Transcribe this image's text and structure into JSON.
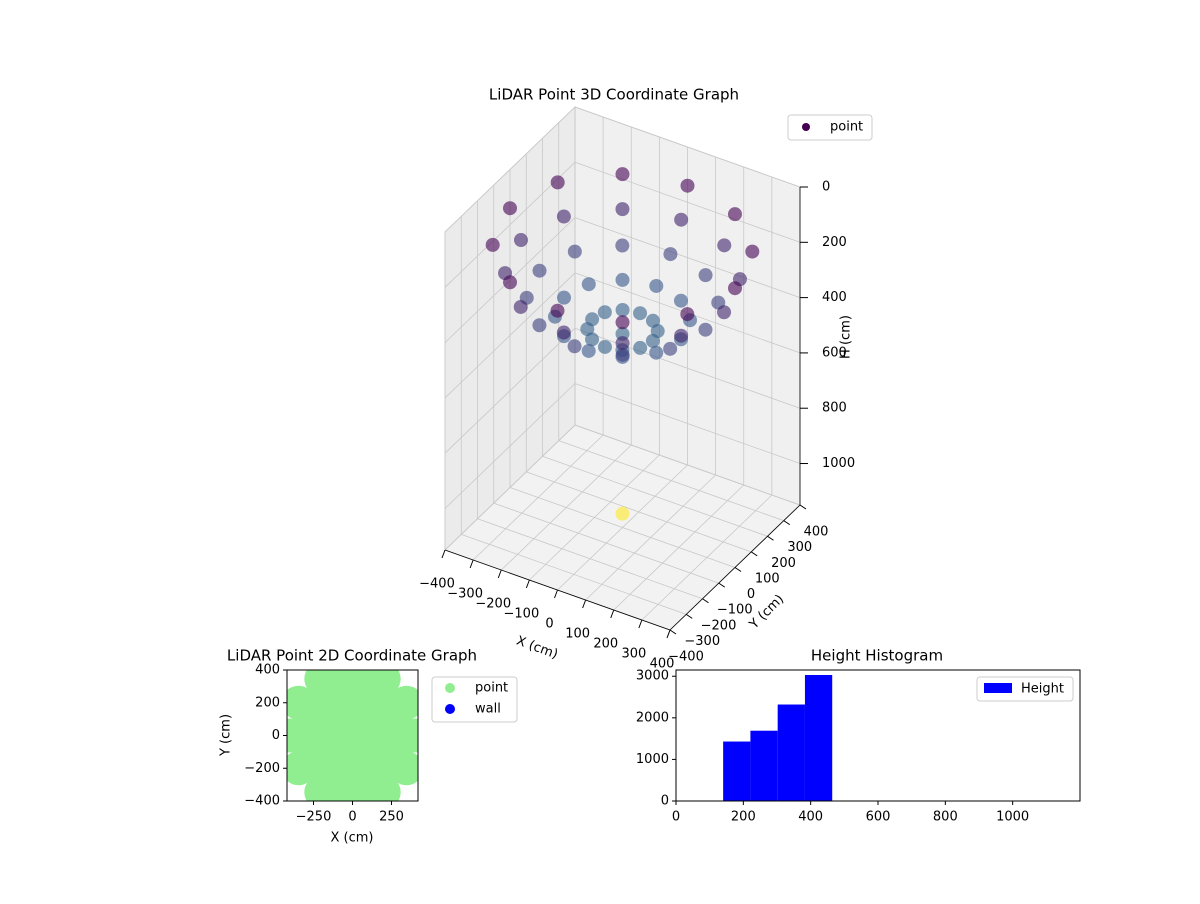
{
  "chart_data": [
    {
      "type": "scatter3d",
      "title": "LiDAR Point 3D Coordinate Graph",
      "xlabel": "X (cm)",
      "ylabel": "Y (cm)",
      "zlabel": "H (cm)",
      "colormap": "viridis",
      "legend": "upper right",
      "grid": true,
      "xlim": [
        -400,
        400
      ],
      "ylim": [
        -400,
        400
      ],
      "zlim": [
        1150,
        0
      ],
      "xticks": [
        {
          "value": -400,
          "label": "−400"
        },
        {
          "value": -300,
          "label": "−300"
        },
        {
          "value": -200,
          "label": "−200"
        },
        {
          "value": -100,
          "label": "−100"
        },
        0,
        100,
        200,
        300,
        400
      ],
      "yticks": [
        {
          "value": -400,
          "label": "−400"
        },
        {
          "value": -300,
          "label": "−300"
        },
        {
          "value": -200,
          "label": "−200"
        },
        {
          "value": -100,
          "label": "−100"
        },
        0,
        100,
        200,
        300,
        400
      ],
      "zticks": [
        0,
        200,
        400,
        600,
        800,
        1000
      ],
      "series": [
        {
          "name": "point",
          "x": [
            0,
            108,
            94,
            54,
            0,
            -54,
            -94,
            -108,
            -94,
            -54,
            0,
            54,
            94,
            208,
            180,
            104,
            0,
            -104,
            -180,
            -208,
            -180,
            -104,
            0,
            104,
            180,
            295,
            255,
            148,
            0,
            -148,
            -255,
            -295,
            -255,
            -148,
            0,
            148,
            255,
            361,
            313,
            181,
            0,
            -181,
            -313,
            -361,
            -313,
            -181,
            0,
            181,
            313,
            400,
            346,
            200,
            0,
            -200,
            -346,
            -400,
            -346,
            -200,
            0,
            200,
            346,
            0
          ],
          "y": [
            0,
            0,
            54,
            94,
            108,
            94,
            54,
            0,
            -54,
            -94,
            -108,
            -94,
            -54,
            0,
            104,
            180,
            208,
            180,
            104,
            0,
            -104,
            -180,
            -208,
            -180,
            -104,
            0,
            148,
            255,
            295,
            255,
            148,
            0,
            -148,
            -255,
            -295,
            -255,
            -148,
            0,
            181,
            313,
            361,
            313,
            181,
            0,
            -181,
            -313,
            -361,
            -313,
            -181,
            0,
            200,
            346,
            400,
            346,
            200,
            0,
            -200,
            -346,
            -400,
            -346,
            -200,
            0
          ],
          "h": [
            450,
            436,
            436,
            436,
            436,
            436,
            436,
            436,
            436,
            436,
            436,
            436,
            436,
            394,
            394,
            394,
            394,
            394,
            394,
            394,
            394,
            394,
            394,
            394,
            394,
            328,
            328,
            328,
            328,
            328,
            328,
            328,
            328,
            328,
            328,
            328,
            328,
            241,
            241,
            241,
            241,
            241,
            241,
            241,
            241,
            241,
            241,
            241,
            241,
            140,
            140,
            140,
            140,
            140,
            140,
            140,
            140,
            140,
            140,
            140,
            140,
            1100
          ]
        }
      ]
    },
    {
      "type": "scatter",
      "title": "LiDAR Point 2D Coordinate Graph",
      "xlabel": "X (cm)",
      "ylabel": "Y (cm)",
      "legend": "outside right",
      "xlim": [
        -420,
        420
      ],
      "ylim": [
        -400,
        400
      ],
      "xticks": [
        {
          "value": -250,
          "label": "−250"
        },
        0,
        250
      ],
      "yticks": [
        {
          "value": -400,
          "label": "−400"
        },
        {
          "value": -200,
          "label": "−200"
        },
        0,
        200,
        400
      ],
      "series": [
        {
          "name": "point",
          "color": "#90ee90",
          "x": [
            0,
            108,
            94,
            54,
            0,
            -54,
            -94,
            -108,
            -94,
            -54,
            0,
            54,
            94,
            208,
            180,
            104,
            0,
            -104,
            -180,
            -208,
            -180,
            -104,
            0,
            104,
            180,
            295,
            255,
            148,
            0,
            -148,
            -255,
            -295,
            -255,
            -148,
            0,
            148,
            255,
            361,
            313,
            181,
            0,
            -181,
            -313,
            -361,
            -313,
            -181,
            0,
            181,
            313,
            400,
            346,
            200,
            0,
            -200,
            -346,
            -400,
            -346,
            -200,
            0,
            200,
            346
          ],
          "y": [
            0,
            0,
            54,
            94,
            108,
            94,
            54,
            0,
            -54,
            -94,
            -108,
            -94,
            -54,
            0,
            104,
            180,
            208,
            180,
            104,
            0,
            -104,
            -180,
            -208,
            -180,
            -104,
            0,
            148,
            255,
            295,
            255,
            148,
            0,
            -148,
            -255,
            -295,
            -255,
            -148,
            0,
            181,
            313,
            361,
            313,
            181,
            0,
            -181,
            -313,
            -361,
            -313,
            -181,
            0,
            200,
            346,
            400,
            346,
            200,
            0,
            -200,
            -346,
            -400,
            -346,
            -200
          ]
        },
        {
          "name": "wall",
          "color": "#0000ff",
          "x": [],
          "y": []
        }
      ]
    },
    {
      "type": "histogram",
      "title": "Height Histogram",
      "legend": "upper right",
      "xlim": [
        0,
        1200
      ],
      "ylim": [
        0,
        3150
      ],
      "xticks": [
        0,
        200,
        400,
        600,
        800,
        1000
      ],
      "yticks": [
        0,
        1000,
        2000,
        3000
      ],
      "series": [
        {
          "name": "Height",
          "color": "#0000ff",
          "bins": [
            140,
            221,
            302,
            383,
            464,
            545,
            626,
            707,
            788,
            869,
            950,
            1031,
            1112
          ],
          "counts": [
            1430,
            1690,
            2320,
            3030,
            0,
            0,
            0,
            0,
            0,
            0,
            0,
            1
          ]
        }
      ]
    }
  ]
}
